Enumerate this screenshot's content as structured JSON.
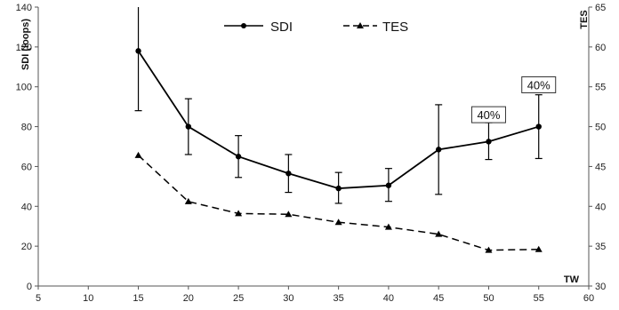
{
  "chart_data": {
    "type": "line",
    "xlabel": "TW",
    "ylabel": "SDI (loops)",
    "y2label": "TES",
    "xlim": [
      5,
      60
    ],
    "ylim": [
      0,
      140
    ],
    "y2lim": [
      30,
      65
    ],
    "x_ticks": [
      5,
      10,
      15,
      20,
      25,
      30,
      35,
      40,
      45,
      50,
      55,
      60
    ],
    "y_ticks": [
      0,
      20,
      40,
      60,
      80,
      100,
      120,
      140
    ],
    "y2_ticks": [
      30,
      35,
      40,
      45,
      50,
      55,
      60,
      65
    ],
    "grid": false,
    "legend_position": "top-center",
    "x": [
      15,
      20,
      25,
      30,
      35,
      40,
      45,
      50,
      55
    ],
    "series": [
      {
        "name": "SDI",
        "axis": "left",
        "style": "solid",
        "marker": "circle",
        "values": [
          118,
          80,
          65,
          56.5,
          49,
          50.5,
          68.5,
          72.5,
          80
        ],
        "error_low": [
          88,
          66,
          54.5,
          47,
          41.5,
          42.5,
          46,
          63.5,
          64
        ],
        "error_high": [
          148,
          94,
          75.5,
          66,
          57,
          59,
          91,
          82,
          96
        ]
      },
      {
        "name": "TES",
        "axis": "right",
        "style": "dashed",
        "marker": "triangle",
        "values": [
          46.4,
          40.6,
          39.1,
          39.0,
          38.0,
          37.4,
          36.5,
          34.5,
          34.6
        ]
      }
    ],
    "annotations": [
      {
        "text": "40%",
        "x": 50,
        "y": 86
      },
      {
        "text": "40%",
        "x": 55,
        "y": 101
      }
    ]
  },
  "colors": {
    "line": "#000000",
    "axis": "#555555"
  }
}
